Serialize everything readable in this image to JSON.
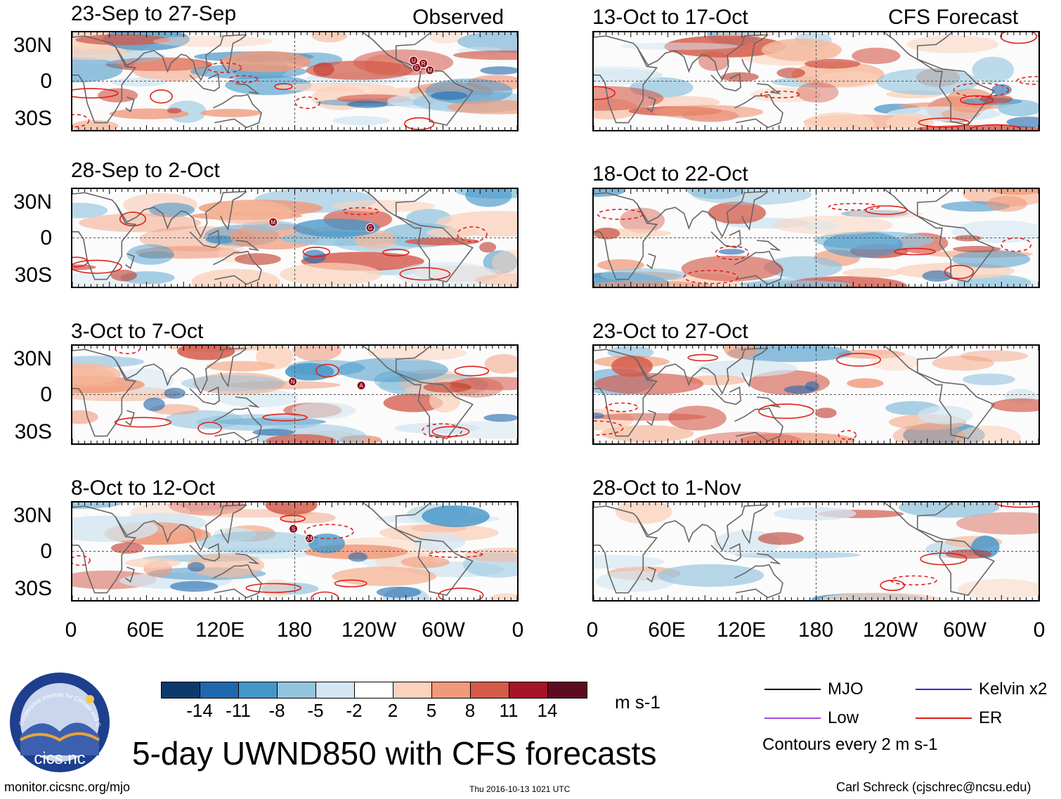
{
  "headers": {
    "observed_label": "Observed",
    "forecast_label": "CFS Forecast"
  },
  "observed_panels": [
    {
      "title": "23-Sep to 27-Sep"
    },
    {
      "title": "28-Sep to 2-Oct"
    },
    {
      "title": "3-Oct to 7-Oct"
    },
    {
      "title": "8-Oct to 12-Oct"
    }
  ],
  "forecast_panels": [
    {
      "title": "13-Oct to 17-Oct"
    },
    {
      "title": "18-Oct to 22-Oct"
    },
    {
      "title": "23-Oct to 27-Oct"
    },
    {
      "title": "28-Oct to 1-Nov"
    }
  ],
  "axes": {
    "lat_labels": [
      "30N",
      "0",
      "30S"
    ],
    "lon_labels": [
      "0",
      "60E",
      "120E",
      "180",
      "120W",
      "60W",
      "0"
    ]
  },
  "colorbar": {
    "labels": [
      "-14",
      "-11",
      "-8",
      "-5",
      "-2",
      "2",
      "5",
      "8",
      "11",
      "14"
    ],
    "colors": [
      "#0b3a6f",
      "#1f68ae",
      "#4596c8",
      "#93c4de",
      "#d3e6f1",
      "#ffffff",
      "#fbd2bc",
      "#f09a7a",
      "#d45a4a",
      "#a51428",
      "#5e0a1f"
    ],
    "units": "m s-1"
  },
  "title": "5-day UWND850 with CFS forecasts",
  "legend": {
    "items": [
      {
        "label": "MJO",
        "color": "#000000"
      },
      {
        "label": "Kelvin x2",
        "color": "#2b2bd4"
      },
      {
        "label": "Low",
        "color": "#a24ee0"
      },
      {
        "label": "ER",
        "color": "#e0201c"
      }
    ],
    "contour_note": "Contours every 2 m s-1"
  },
  "footer": {
    "url": "monitor.cicsnc.org/mjo",
    "timestamp": "Thu 2016-10-13 1021 UTC",
    "credit": "Carl Schreck (cjschrec@ncsu.edu)"
  },
  "logo": {
    "text": "cics.nc",
    "ring_text": "Cooperative Institute for Climate and Satellites"
  },
  "storm_markers": [
    {
      "panel": 0,
      "labels": [
        "M",
        "G",
        "U",
        "R"
      ]
    },
    {
      "panel": 1,
      "labels": [
        "G",
        "M"
      ]
    },
    {
      "panel": 2,
      "labels": [
        "A",
        "N"
      ]
    },
    {
      "panel": 3,
      "labels": [
        "24",
        "S"
      ]
    }
  ]
}
